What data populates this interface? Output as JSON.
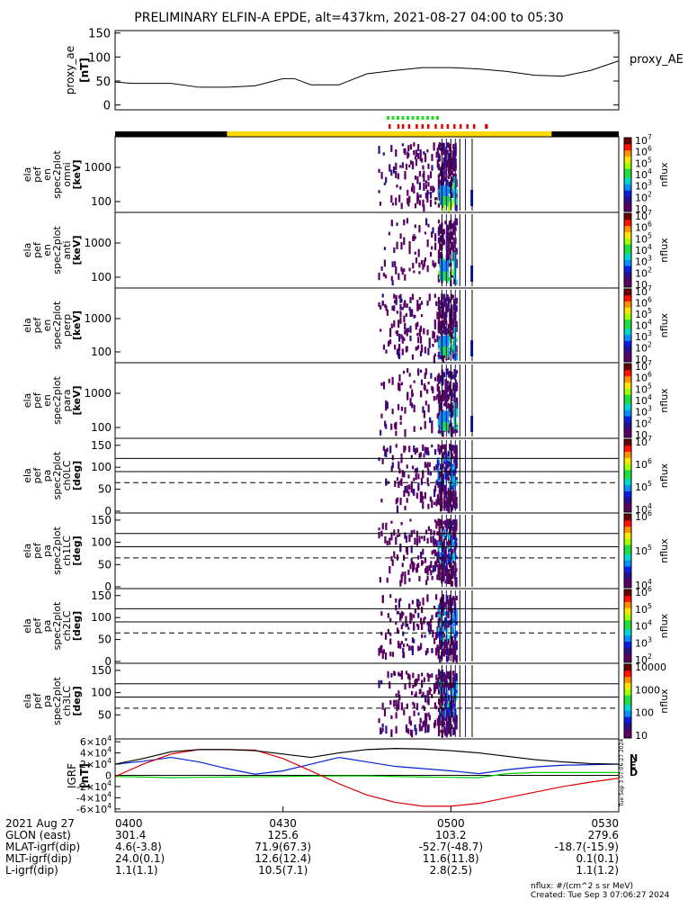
{
  "title": "PRELIMINARY ELFIN-A EPDE, alt=437km, 2021-08-27 04:00 to 05:30",
  "chart_data": [
    {
      "type": "line",
      "panel": "proxy_ae",
      "ylabel": [
        "proxy_ae",
        "[nT]"
      ],
      "ylim": [
        -10,
        155
      ],
      "yticks": [
        0,
        50,
        100,
        150
      ],
      "legend": "proxy_AE",
      "x_min": [
        0,
        3,
        6,
        10,
        15,
        20,
        25,
        30,
        32,
        35,
        40,
        45,
        50,
        55,
        60,
        65,
        70,
        75,
        80,
        85,
        90
      ],
      "y": [
        48,
        45,
        45,
        45,
        37,
        37,
        40,
        55,
        55,
        42,
        42,
        65,
        72,
        78,
        78,
        75,
        70,
        62,
        60,
        72,
        92
      ]
    },
    {
      "type": "heatmap",
      "panel": "omni",
      "ylabel": [
        "ela",
        "pef",
        "en",
        "spec2plot",
        "omni",
        "[keV]"
      ],
      "yticks": [
        "100",
        "1000"
      ],
      "cbar_label": "nflux",
      "cbar_ticks": [
        "10",
        "10^2",
        "10^3",
        "10^4",
        "10^5",
        "10^6",
        "10^7"
      ]
    },
    {
      "type": "heatmap",
      "panel": "anti",
      "ylabel": [
        "ela",
        "pef",
        "en",
        "spec2plot",
        "anti",
        "[keV]"
      ],
      "yticks": [
        "100",
        "1000"
      ],
      "cbar_label": "nflux",
      "cbar_ticks": [
        "10",
        "10^2",
        "10^3",
        "10^4",
        "10^5",
        "10^6",
        "10^7"
      ]
    },
    {
      "type": "heatmap",
      "panel": "perp",
      "ylabel": [
        "ela",
        "pef",
        "en",
        "spec2plot",
        "perp",
        "[keV]"
      ],
      "yticks": [
        "100",
        "1000"
      ],
      "cbar_label": "nflux",
      "cbar_ticks": [
        "10",
        "10^2",
        "10^3",
        "10^4",
        "10^5",
        "10^6",
        "10^7"
      ]
    },
    {
      "type": "heatmap",
      "panel": "para",
      "ylabel": [
        "ela",
        "pef",
        "en",
        "spec2plot",
        "para",
        "[keV]"
      ],
      "yticks": [
        "100",
        "1000"
      ],
      "cbar_label": "nflux",
      "cbar_ticks": [
        "10",
        "10^2",
        "10^3",
        "10^4",
        "10^5",
        "10^6",
        "10^7"
      ]
    },
    {
      "type": "heatmap",
      "panel": "ch0LC",
      "ylabel": [
        "ela",
        "pef",
        "pa",
        "spec2plot",
        "ch0LC",
        "[deg]"
      ],
      "yticks": [
        "0",
        "50",
        "100",
        "150"
      ],
      "cbar_label": "nflux",
      "cbar_ticks": [
        "10^4",
        "10^5",
        "10^6",
        "10^7"
      ]
    },
    {
      "type": "heatmap",
      "panel": "ch1LC",
      "ylabel": [
        "ela",
        "pef",
        "pa",
        "spec2plot",
        "ch1LC",
        "[deg]"
      ],
      "yticks": [
        "0",
        "50",
        "100",
        "150"
      ],
      "cbar_label": "nflux",
      "cbar_ticks": [
        "10^4",
        "10^5",
        "10^6"
      ]
    },
    {
      "type": "heatmap",
      "panel": "ch2LC",
      "ylabel": [
        "ela",
        "pef",
        "pa",
        "spec2plot",
        "ch2LC",
        "[deg]"
      ],
      "yticks": [
        "0",
        "50",
        "100",
        "150"
      ],
      "cbar_label": "nflux",
      "cbar_ticks": [
        "10^2",
        "10^3",
        "10^4",
        "10^5",
        "10^6"
      ]
    },
    {
      "type": "heatmap",
      "panel": "ch3LC",
      "ylabel": [
        "ela",
        "pef",
        "pa",
        "spec2plot",
        "ch3LC",
        "[deg]"
      ],
      "yticks": [
        "50",
        "100",
        "150"
      ],
      "cbar_label": "nflux",
      "cbar_ticks": [
        "10",
        "100",
        "1000",
        "10000"
      ]
    },
    {
      "type": "line",
      "panel": "IGRF",
      "ylabel": [
        "IGRF",
        "[nT]"
      ],
      "ylim": [
        -65000,
        65000
      ],
      "yticks": [
        "6×10^4",
        "4×10^4",
        "2×10^4",
        "0",
        "-2×10^4",
        "-4×10^4",
        "-6×10^4"
      ],
      "x_min": [
        0,
        5,
        10,
        15,
        20,
        25,
        30,
        35,
        40,
        45,
        50,
        55,
        60,
        65,
        70,
        75,
        80,
        85,
        90
      ],
      "series": [
        {
          "name": "N",
          "color": "#0022cc",
          "values": [
            20000,
            25000,
            32000,
            24000,
            12000,
            2000,
            8000,
            20000,
            32000,
            24000,
            16000,
            12000,
            8000,
            3000,
            10000,
            15000,
            18000,
            19000,
            20000
          ]
        },
        {
          "name": "E",
          "color": "#00cc00",
          "values": [
            -2000,
            -3000,
            -4000,
            -3500,
            -3000,
            -2500,
            -2000,
            -1500,
            -1000,
            -1000,
            -2000,
            -3000,
            -3500,
            -4000,
            3000,
            5000,
            5000,
            5000,
            5000
          ]
        },
        {
          "name": "D",
          "color": "#dd0000",
          "values": [
            -2000,
            20000,
            38000,
            46000,
            46000,
            45000,
            30000,
            8000,
            -15000,
            -35000,
            -48000,
            -55000,
            -55000,
            -50000,
            -40000,
            -30000,
            -20000,
            -12000,
            -5000
          ]
        },
        {
          "name": "",
          "color": "#000000",
          "values": [
            20000,
            30000,
            42000,
            46000,
            46000,
            44000,
            38000,
            32000,
            40000,
            46000,
            48000,
            47000,
            44000,
            40000,
            34000,
            28000,
            24000,
            21000,
            20000
          ]
        }
      ]
    }
  ],
  "orbit_bar": {
    "segments": [
      {
        "start_min": 0,
        "end_min": 20,
        "color": "#000000"
      },
      {
        "start_min": 20,
        "end_min": 78,
        "color": "#ffd700"
      },
      {
        "start_min": 78,
        "end_min": 90,
        "color": "#000000"
      }
    ]
  },
  "footer": {
    "row_labels": [
      "2021 Aug 27",
      "GLON (east)",
      "MLAT-igrf(dip)",
      "MLT-igrf(dip)",
      "L-igrf(dip)"
    ],
    "columns": [
      {
        "time": "0400",
        "values": [
          "301.4",
          "4.6(-3.8)",
          "24.0(0.1)",
          "1.1(1.1)"
        ]
      },
      {
        "time": "0430",
        "values": [
          "125.6",
          "71.9(67.3)",
          "12.6(12.4)",
          "10.5(7.1)"
        ]
      },
      {
        "time": "0500",
        "values": [
          "103.2",
          "-52.7(-48.7)",
          "11.6(11.8)",
          "2.8(2.5)"
        ]
      },
      {
        "time": "0530",
        "values": [
          "279.6",
          "-18.7(-15.9)",
          "0.1(0.1)",
          "1.1(1.2)"
        ]
      }
    ],
    "units_note": "nflux: #/(cm^2 s sr MeV)",
    "created": "Created: Tue Sep  3 07:06:27 2024"
  },
  "side_stamp": "Tue Sep  3 07:06:27 2024"
}
